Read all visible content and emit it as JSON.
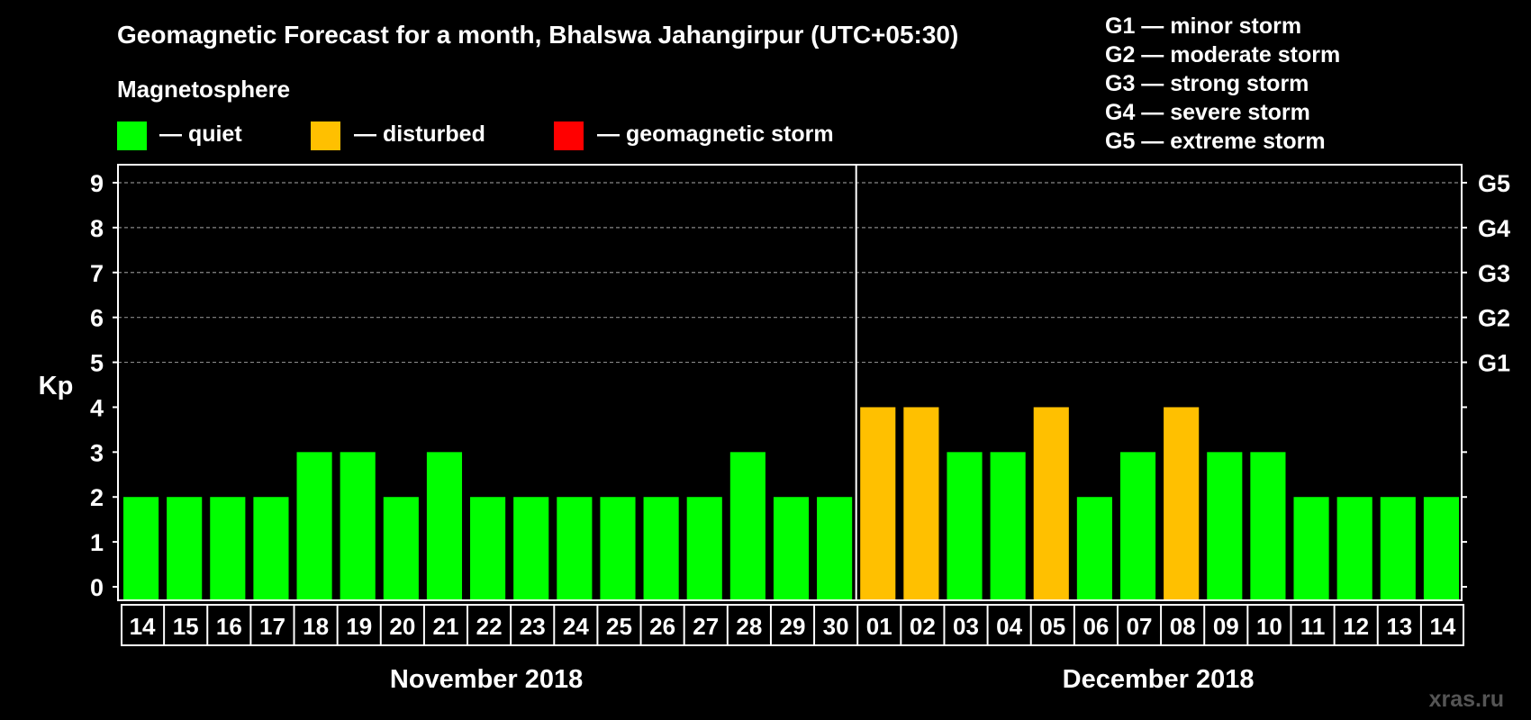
{
  "chart_data": {
    "type": "bar",
    "title": "Geomagnetic Forecast for a month, Bhalswa Jahangirpur (UTC+05:30)",
    "subtitle": "Magnetosphere",
    "ylabel": "Kp",
    "ylim": [
      0,
      9
    ],
    "yticks": [
      "0",
      "1",
      "2",
      "3",
      "4",
      "5",
      "6",
      "7",
      "8",
      "9"
    ],
    "storm_ticks": [
      {
        "kp": 5,
        "label": "G1"
      },
      {
        "kp": 6,
        "label": "G2"
      },
      {
        "kp": 7,
        "label": "G3"
      },
      {
        "kp": 8,
        "label": "G4"
      },
      {
        "kp": 9,
        "label": "G5"
      }
    ],
    "legend": [
      {
        "text": "— quiet",
        "color": "#00ff00"
      },
      {
        "text": "— disturbed",
        "color": "#ffc000"
      },
      {
        "text": "— geomagnetic storm",
        "color": "#ff0000"
      }
    ],
    "storm_scale": [
      "G1 — minor storm",
      "G2 — moderate storm",
      "G3 — strong storm",
      "G4 — severe storm",
      "G5 — extreme storm"
    ],
    "categories": [
      "14",
      "15",
      "16",
      "17",
      "18",
      "19",
      "20",
      "21",
      "22",
      "23",
      "24",
      "25",
      "26",
      "27",
      "28",
      "29",
      "30",
      "01",
      "02",
      "03",
      "04",
      "05",
      "06",
      "07",
      "08",
      "09",
      "10",
      "11",
      "12",
      "13",
      "14"
    ],
    "values": [
      2,
      2,
      2,
      2,
      3,
      3,
      2,
      3,
      2,
      2,
      2,
      2,
      2,
      2,
      3,
      2,
      2,
      4,
      4,
      3,
      3,
      4,
      2,
      3,
      4,
      3,
      3,
      2,
      2,
      2,
      2
    ],
    "months": [
      {
        "label": "November 2018",
        "start": 0,
        "count": 17
      },
      {
        "label": "December 2018",
        "start": 17,
        "count": 14
      }
    ],
    "grid_from_kp": 5,
    "colors": {
      "quiet": "#00ff00",
      "disturbed": "#ffc000",
      "storm": "#ff0000",
      "axis": "#ffffff",
      "grid": "#888888"
    }
  },
  "watermark": "xras.ru"
}
